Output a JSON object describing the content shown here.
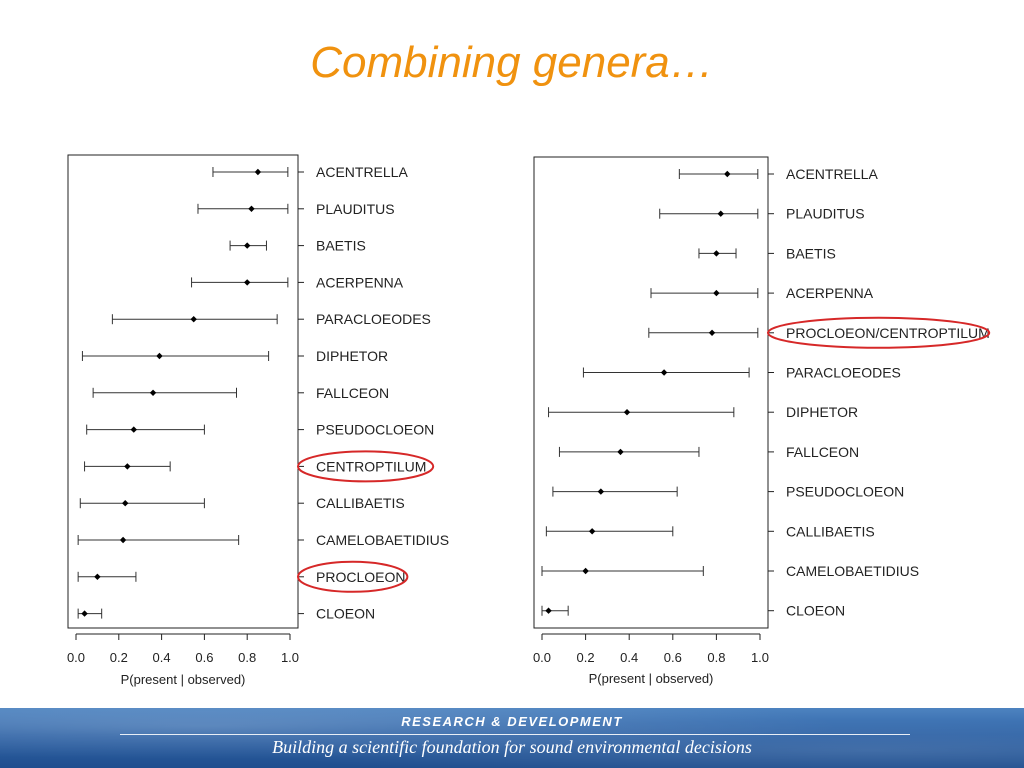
{
  "slide": {
    "title": "Combining genera…"
  },
  "footer": {
    "heading": "RESEARCH &  DEVELOPMENT",
    "tagline": "Building a scientific foundation for sound environmental decisions"
  },
  "colors": {
    "title": "#f0920f",
    "highlight_ellipse": "#d62828",
    "footer_bg": "#2f63a6"
  },
  "chart_data": [
    {
      "type": "dotplot-errorbar",
      "xlabel": "P(present | observed)",
      "xlim": [
        0,
        1
      ],
      "xticks": [
        "0.0",
        "0.2",
        "0.4",
        "0.6",
        "0.8",
        "1.0"
      ],
      "highlighted": [
        "CENTROPTILUM",
        "PROCLOEON"
      ],
      "rows": [
        {
          "label": "ACENTRELLA",
          "estimate": 0.85,
          "lower": 0.64,
          "upper": 0.99
        },
        {
          "label": "PLAUDITUS",
          "estimate": 0.82,
          "lower": 0.57,
          "upper": 0.99
        },
        {
          "label": "BAETIS",
          "estimate": 0.8,
          "lower": 0.72,
          "upper": 0.89
        },
        {
          "label": "ACERPENNA",
          "estimate": 0.8,
          "lower": 0.54,
          "upper": 0.99
        },
        {
          "label": "PARACLOEODES",
          "estimate": 0.55,
          "lower": 0.17,
          "upper": 0.94
        },
        {
          "label": "DIPHETOR",
          "estimate": 0.39,
          "lower": 0.03,
          "upper": 0.9
        },
        {
          "label": "FALLCEON",
          "estimate": 0.36,
          "lower": 0.08,
          "upper": 0.75
        },
        {
          "label": "PSEUDOCLOEON",
          "estimate": 0.27,
          "lower": 0.05,
          "upper": 0.6
        },
        {
          "label": "CENTROPTILUM",
          "estimate": 0.24,
          "lower": 0.04,
          "upper": 0.44
        },
        {
          "label": "CALLIBAETIS",
          "estimate": 0.23,
          "lower": 0.02,
          "upper": 0.6
        },
        {
          "label": "CAMELOBAETIDIUS",
          "estimate": 0.22,
          "lower": 0.01,
          "upper": 0.76
        },
        {
          "label": "PROCLOEON",
          "estimate": 0.1,
          "lower": 0.01,
          "upper": 0.28
        },
        {
          "label": "CLOEON",
          "estimate": 0.04,
          "lower": 0.01,
          "upper": 0.12
        }
      ]
    },
    {
      "type": "dotplot-errorbar",
      "xlabel": "P(present | observed)",
      "xlim": [
        0,
        1
      ],
      "xticks": [
        "0.0",
        "0.2",
        "0.4",
        "0.6",
        "0.8",
        "1.0"
      ],
      "highlighted": [
        "PROCLOEON/CENTROPTILUM"
      ],
      "rows": [
        {
          "label": "ACENTRELLA",
          "estimate": 0.85,
          "lower": 0.63,
          "upper": 0.99
        },
        {
          "label": "PLAUDITUS",
          "estimate": 0.82,
          "lower": 0.54,
          "upper": 0.99
        },
        {
          "label": "BAETIS",
          "estimate": 0.8,
          "lower": 0.72,
          "upper": 0.89
        },
        {
          "label": "ACERPENNA",
          "estimate": 0.8,
          "lower": 0.5,
          "upper": 0.99
        },
        {
          "label": "PROCLOEON/CENTROPTILUM",
          "estimate": 0.78,
          "lower": 0.49,
          "upper": 0.99
        },
        {
          "label": "PARACLOEODES",
          "estimate": 0.56,
          "lower": 0.19,
          "upper": 0.95
        },
        {
          "label": "DIPHETOR",
          "estimate": 0.39,
          "lower": 0.03,
          "upper": 0.88
        },
        {
          "label": "FALLCEON",
          "estimate": 0.36,
          "lower": 0.08,
          "upper": 0.72
        },
        {
          "label": "PSEUDOCLOEON",
          "estimate": 0.27,
          "lower": 0.05,
          "upper": 0.62
        },
        {
          "label": "CALLIBAETIS",
          "estimate": 0.23,
          "lower": 0.02,
          "upper": 0.6
        },
        {
          "label": "CAMELOBAETIDIUS",
          "estimate": 0.2,
          "lower": 0.0,
          "upper": 0.74
        },
        {
          "label": "CLOEON",
          "estimate": 0.03,
          "lower": 0.0,
          "upper": 0.12
        }
      ]
    }
  ]
}
